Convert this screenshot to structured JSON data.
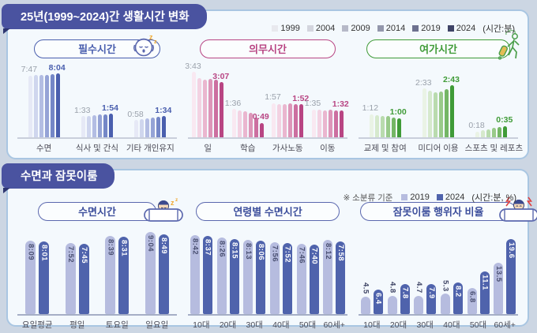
{
  "section1": {
    "title": "25년(1999~2024)간 생활시간 변화",
    "legend": {
      "years": [
        "1999",
        "2004",
        "2009",
        "2014",
        "2019",
        "2024"
      ],
      "colors": [
        "#e8e9ee",
        "#d3d5de",
        "#b6b9c8",
        "#9397ac",
        "#6d718f",
        "#3f4467"
      ],
      "suffix": "(시간:분)"
    }
  },
  "section2": {
    "title": "수면과 잠못이룸",
    "legend": {
      "note": "※ 소분류 기준",
      "items": [
        {
          "label": "2019",
          "color": "#b6bcdf"
        },
        {
          "label": "2024",
          "color": "#4f63ac"
        }
      ],
      "suffix": "(시간:분, %)"
    },
    "bar_colors": [
      "#b6bcdf",
      "#4f63ac"
    ]
  },
  "chart_data": [
    {
      "type": "bar",
      "panel": 1,
      "title": "필수시간",
      "icon": "sleepy-face-icon",
      "accent": "#4a5fae",
      "palette": [
        "#e6e9f6",
        "#cfd6ee",
        "#b3bde3",
        "#95a3d6",
        "#7487c7",
        "#4a5fae"
      ],
      "series_labels": [
        "1999",
        "2004",
        "2009",
        "2014",
        "2019",
        "2024"
      ],
      "categories": [
        "수면",
        "식사 및 간식",
        "기타 개인유지"
      ],
      "first_labels": [
        "7:47",
        "1:33",
        "0:58"
      ],
      "last_labels": [
        "8:04",
        "1:54",
        "1:34"
      ],
      "values": [
        [
          467,
          468,
          470,
          474,
          478,
          484
        ],
        [
          93,
          97,
          102,
          107,
          111,
          114
        ],
        [
          58,
          64,
          70,
          77,
          85,
          94
        ]
      ],
      "unit": "minutes"
    },
    {
      "type": "bar",
      "panel": 1,
      "title": "의무시간",
      "icon": null,
      "accent": "#b84583",
      "palette": [
        "#f9e8f1",
        "#f3d2e2",
        "#eab6cf",
        "#dd96b9",
        "#cc6fa0",
        "#b84583"
      ],
      "series_labels": [
        "1999",
        "2004",
        "2009",
        "2014",
        "2019",
        "2024"
      ],
      "categories": [
        "일",
        "학습",
        "가사노동",
        "이동"
      ],
      "first_labels": [
        "3:43",
        "1:36",
        "1:57",
        "1:35"
      ],
      "last_labels": [
        "3:07",
        "0:49",
        "1:52",
        "1:32"
      ],
      "values": [
        [
          223,
          203,
          196,
          199,
          196,
          187
        ],
        [
          96,
          92,
          90,
          84,
          66,
          49
        ],
        [
          117,
          114,
          113,
          116,
          114,
          112
        ],
        [
          95,
          94,
          92,
          94,
          91,
          92
        ]
      ],
      "unit": "minutes"
    },
    {
      "type": "bar",
      "panel": 1,
      "title": "여가시간",
      "icon": "traveler-icon",
      "accent": "#3f9b37",
      "palette": [
        "#eaf3e5",
        "#d6e9cd",
        "#b9dbae",
        "#99ca8a",
        "#74b665",
        "#3f9b37"
      ],
      "series_labels": [
        "1999",
        "2004",
        "2009",
        "2014",
        "2019",
        "2024"
      ],
      "categories": [
        "교제 및 참여",
        "미디어 이용",
        "스포츠 및 레포츠"
      ],
      "first_labels": [
        "1:12",
        "2:33",
        "0:18"
      ],
      "last_labels": [
        "1:00",
        "2:43",
        "0:35"
      ],
      "values": [
        [
          72,
          70,
          68,
          66,
          61,
          60
        ],
        [
          153,
          147,
          141,
          144,
          150,
          163
        ],
        [
          18,
          22,
          26,
          29,
          32,
          35
        ]
      ],
      "unit": "minutes"
    },
    {
      "type": "bar",
      "panel": 2,
      "title": "수면시간",
      "icon": "sleeping-person-icon",
      "series_labels": [
        "2019",
        "2024"
      ],
      "categories": [
        "요일평균",
        "평일",
        "토요일",
        "일요일"
      ],
      "display": [
        [
          "8:09",
          "8:01"
        ],
        [
          "7:52",
          "7:45"
        ],
        [
          "8:39",
          "8:31"
        ],
        [
          "9:04",
          "8:49"
        ]
      ],
      "values": [
        [
          489,
          481
        ],
        [
          472,
          465
        ],
        [
          519,
          511
        ],
        [
          544,
          529
        ]
      ],
      "unit": "minutes"
    },
    {
      "type": "bar",
      "panel": 2,
      "title": "연령별 수면시간",
      "icon": null,
      "series_labels": [
        "2019",
        "2024"
      ],
      "categories": [
        "10대",
        "20대",
        "30대",
        "40대",
        "50대",
        "60세+"
      ],
      "display": [
        [
          "8:42",
          "8:37"
        ],
        [
          "8:26",
          "8:15"
        ],
        [
          "8:13",
          "8:06"
        ],
        [
          "7:56",
          "7:52"
        ],
        [
          "7:46",
          "7:40"
        ],
        [
          "8:12",
          "7:58"
        ]
      ],
      "values": [
        [
          522,
          517
        ],
        [
          506,
          495
        ],
        [
          493,
          486
        ],
        [
          476,
          472
        ],
        [
          466,
          460
        ],
        [
          492,
          478
        ]
      ],
      "unit": "minutes"
    },
    {
      "type": "bar",
      "panel": 2,
      "title": "잠못이룸 행위자 비율",
      "icon": "sleepless-person-icon",
      "series_labels": [
        "2019",
        "2024"
      ],
      "categories": [
        "10대",
        "20대",
        "30대",
        "40대",
        "50대",
        "60세+"
      ],
      "display": [
        [
          "4.5",
          "6.4"
        ],
        [
          "4.8",
          "7.8"
        ],
        [
          "4.7",
          "7.9"
        ],
        [
          "5.3",
          "8.2"
        ],
        [
          "6.8",
          "11.1"
        ],
        [
          "13.5",
          "19.6"
        ]
      ],
      "values": [
        [
          4.5,
          6.4
        ],
        [
          4.8,
          7.8
        ],
        [
          4.7,
          7.9
        ],
        [
          5.3,
          8.2
        ],
        [
          6.8,
          11.1
        ],
        [
          13.5,
          19.6
        ]
      ],
      "unit": "percent"
    }
  ]
}
